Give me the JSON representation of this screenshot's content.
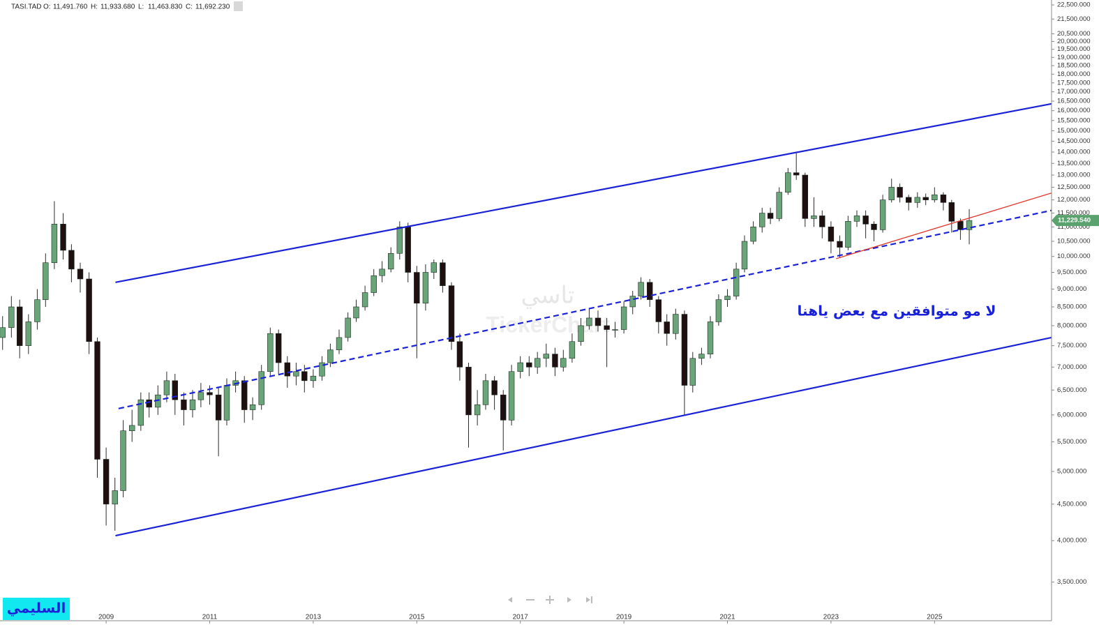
{
  "header": {
    "symbol": "TASI.TAD",
    "fields": [
      {
        "label": "O:",
        "value": "11,491.760"
      },
      {
        "label": "H:",
        "value": "11,933.680"
      },
      {
        "label": "L:",
        "value": "11,463.830"
      },
      {
        "label": "C:",
        "value": "11,692.230"
      }
    ]
  },
  "chart_data": {
    "type": "candlestick",
    "y_scale": "log",
    "grid": false,
    "up_color": "#6aa57a",
    "down_color": "#1e0f10",
    "wick_color": "#2a2a2a",
    "xlim": [
      2006.95,
      2027.26
    ],
    "xticks": [
      2009,
      2011,
      2013,
      2015,
      2017,
      2019,
      2021,
      2023,
      2025
    ],
    "ylim": [
      3090,
      22860
    ],
    "yticks": [
      {
        "value": 3500,
        "label": "3,500.000"
      },
      {
        "value": 4000,
        "label": "4,000.000"
      },
      {
        "value": 4500,
        "label": "4,500.000"
      },
      {
        "value": 5000,
        "label": "5,000.000"
      },
      {
        "value": 5500,
        "label": "5,500.000"
      },
      {
        "value": 6000,
        "label": "6,000.000"
      },
      {
        "value": 6500,
        "label": "6,500.000"
      },
      {
        "value": 7000,
        "label": "7,000.000"
      },
      {
        "value": 7500,
        "label": "7,500.000"
      },
      {
        "value": 8000,
        "label": "8,000.000"
      },
      {
        "value": 8500,
        "label": "8,500.000"
      },
      {
        "value": 9000,
        "label": "9,000.000"
      },
      {
        "value": 9500,
        "label": "9,500.000"
      },
      {
        "value": 10000,
        "label": "10,000.000"
      },
      {
        "value": 10500,
        "label": "10,500.000"
      },
      {
        "value": 11000,
        "label": "11,000.000"
      },
      {
        "value": 11500,
        "label": "11,500.000"
      },
      {
        "value": 12000,
        "label": "12,000.000"
      },
      {
        "value": 12500,
        "label": "12,500.000"
      },
      {
        "value": 13000,
        "label": "13,000.000"
      },
      {
        "value": 13500,
        "label": "13,500.000"
      },
      {
        "value": 14000,
        "label": "14,000.000"
      },
      {
        "value": 14500,
        "label": "14,500.000"
      },
      {
        "value": 15000,
        "label": "15,000.000"
      },
      {
        "value": 15500,
        "label": "15,500.000"
      },
      {
        "value": 16000,
        "label": "16,000.000"
      },
      {
        "value": 16500,
        "label": "16,500.000"
      },
      {
        "value": 17000,
        "label": "17,000.000"
      },
      {
        "value": 17500,
        "label": "17,500.000"
      },
      {
        "value": 18000,
        "label": "18,000.000"
      },
      {
        "value": 18500,
        "label": "18,500.000"
      },
      {
        "value": 19000,
        "label": "19,000.000"
      },
      {
        "value": 19500,
        "label": "19,500.000"
      },
      {
        "value": 20000,
        "label": "20,000.000"
      },
      {
        "value": 20500,
        "label": "20,500.000"
      },
      {
        "value": 21500,
        "label": "21,500.000"
      },
      {
        "value": 22500,
        "label": "22,500.000"
      }
    ],
    "x": [
      2007,
      2007.17,
      2007.33,
      2007.5,
      2007.67,
      2007.83,
      2008,
      2008.17,
      2008.33,
      2008.5,
      2008.67,
      2008.83,
      2009,
      2009.17,
      2009.33,
      2009.5,
      2009.67,
      2009.83,
      2010,
      2010.17,
      2010.33,
      2010.5,
      2010.67,
      2010.83,
      2011,
      2011.17,
      2011.33,
      2011.5,
      2011.67,
      2011.83,
      2012,
      2012.17,
      2012.33,
      2012.5,
      2012.67,
      2012.83,
      2013,
      2013.17,
      2013.33,
      2013.5,
      2013.67,
      2013.83,
      2014,
      2014.17,
      2014.33,
      2014.5,
      2014.67,
      2014.83,
      2015,
      2015.17,
      2015.33,
      2015.5,
      2015.67,
      2015.83,
      2016,
      2016.17,
      2016.33,
      2016.5,
      2016.67,
      2016.83,
      2017,
      2017.17,
      2017.33,
      2017.5,
      2017.67,
      2017.83,
      2018,
      2018.17,
      2018.33,
      2018.5,
      2018.67,
      2018.83,
      2019,
      2019.17,
      2019.33,
      2019.5,
      2019.67,
      2019.83,
      2020,
      2020.17,
      2020.33,
      2020.5,
      2020.67,
      2020.83,
      2021,
      2021.17,
      2021.33,
      2021.5,
      2021.67,
      2021.83,
      2022,
      2022.17,
      2022.33,
      2022.5,
      2022.67,
      2022.83,
      2023,
      2023.17,
      2023.33,
      2023.5,
      2023.67,
      2023.83,
      2024,
      2024.17,
      2024.33,
      2024.5,
      2024.67,
      2024.83,
      2025,
      2025.17,
      2025.33,
      2025.5,
      2025.67
    ],
    "open": [
      7700,
      7950,
      8500,
      7500,
      8100,
      8700,
      9800,
      11100,
      10200,
      9600,
      9300,
      7600,
      5200,
      4500,
      4700,
      5700,
      5800,
      6300,
      6150,
      6400,
      6700,
      6300,
      6100,
      6300,
      6450,
      6400,
      5900,
      6600,
      6700,
      6100,
      6200,
      6900,
      7800,
      7100,
      6800,
      6900,
      6700,
      6800,
      7100,
      7400,
      7700,
      8200,
      8500,
      8900,
      9400,
      9600,
      10100,
      11000,
      9500,
      8600,
      9500,
      9800,
      9100,
      7600,
      7000,
      6000,
      6200,
      6700,
      6400,
      5900,
      6900,
      7100,
      7000,
      7200,
      7300,
      7000,
      7200,
      7600,
      8000,
      8200,
      8000,
      7900,
      7900,
      8500,
      8800,
      9200,
      8700,
      8100,
      7800,
      8300,
      6600,
      7200,
      7300,
      8100,
      8700,
      8800,
      9600,
      10500,
      11000,
      11500,
      11300,
      12300,
      13100,
      13000,
      11300,
      11400,
      11000,
      10500,
      10300,
      11200,
      11400,
      11100,
      10900,
      12000,
      12500,
      12100,
      11900,
      12100,
      12000,
      12200,
      11900,
      11200,
      10900
    ],
    "high": [
      8250,
      8800,
      8700,
      8300,
      9000,
      10100,
      11950,
      11500,
      10400,
      9800,
      9500,
      7700,
      5400,
      4900,
      5900,
      6100,
      6450,
      6450,
      6600,
      6900,
      6850,
      6450,
      6500,
      6650,
      6600,
      6550,
      6750,
      6900,
      6800,
      6350,
      7050,
      7950,
      7900,
      7250,
      7100,
      7050,
      6950,
      7250,
      7550,
      7900,
      8350,
      8700,
      9100,
      9600,
      9850,
      10300,
      11200,
      11150,
      9700,
      9750,
      9900,
      9900,
      9200,
      7800,
      7100,
      6500,
      6850,
      6800,
      6500,
      7050,
      7250,
      7250,
      7350,
      7550,
      7450,
      7400,
      7800,
      8200,
      8450,
      8400,
      8200,
      8100,
      8650,
      8950,
      9350,
      9300,
      8800,
      8300,
      8450,
      8400,
      7350,
      7450,
      8250,
      8850,
      9000,
      9800,
      10700,
      11200,
      11700,
      11700,
      12500,
      13300,
      13950,
      13100,
      12100,
      11600,
      11200,
      10700,
      11400,
      11600,
      11600,
      11200,
      12200,
      12850,
      12650,
      12200,
      12300,
      12250,
      12500,
      12300,
      12000,
      11300,
      11650
    ],
    "low": [
      7400,
      7700,
      7200,
      7300,
      7900,
      8500,
      9600,
      9900,
      9200,
      8900,
      7300,
      4900,
      4200,
      4130,
      4600,
      5500,
      5700,
      5950,
      6000,
      6250,
      6000,
      5800,
      5950,
      6150,
      6200,
      5250,
      5800,
      6450,
      5850,
      5900,
      6100,
      6800,
      6850,
      6550,
      6600,
      6450,
      6550,
      6700,
      7000,
      7300,
      7600,
      8100,
      8400,
      8800,
      9200,
      9500,
      9900,
      9200,
      7200,
      8400,
      9300,
      8900,
      7400,
      6700,
      5400,
      5800,
      6100,
      6100,
      5350,
      5800,
      6750,
      6800,
      6850,
      7000,
      6800,
      6900,
      7100,
      7500,
      7900,
      7850,
      7000,
      7700,
      7800,
      8300,
      8700,
      8500,
      7800,
      7500,
      7650,
      6000,
      6450,
      7050,
      7200,
      8000,
      8500,
      8700,
      9500,
      10400,
      10800,
      11100,
      11200,
      12200,
      12800,
      11000,
      11000,
      10600,
      10100,
      9950,
      10200,
      11000,
      10600,
      10500,
      10800,
      11900,
      11900,
      11600,
      11700,
      11800,
      11900,
      11600,
      10800,
      10550,
      10400
    ],
    "close": [
      7950,
      8500,
      7500,
      8100,
      8700,
      9800,
      11100,
      10200,
      9600,
      9300,
      7600,
      5200,
      4500,
      4700,
      5700,
      5800,
      6300,
      6150,
      6400,
      6700,
      6300,
      6100,
      6300,
      6450,
      6400,
      5900,
      6600,
      6700,
      6100,
      6200,
      6900,
      7800,
      7100,
      6800,
      6900,
      6700,
      6800,
      7100,
      7400,
      7700,
      8200,
      8500,
      8900,
      9400,
      9600,
      10100,
      11000,
      9500,
      8600,
      9500,
      9800,
      9100,
      7600,
      7000,
      6000,
      6200,
      6700,
      6400,
      5900,
      6900,
      7100,
      7000,
      7200,
      7300,
      7000,
      7200,
      7600,
      8000,
      8200,
      8000,
      7900,
      7900,
      8500,
      8800,
      9200,
      8700,
      8100,
      7800,
      8300,
      6600,
      7200,
      7300,
      8100,
      8700,
      8800,
      9600,
      10500,
      11000,
      11500,
      11300,
      12300,
      13100,
      13000,
      11300,
      11400,
      11000,
      10500,
      10300,
      11200,
      11400,
      11100,
      10900,
      12000,
      12500,
      12100,
      11900,
      12100,
      12000,
      12200,
      11900,
      11200,
      10900,
      11229.54
    ],
    "last_price": {
      "value": 11229.54,
      "label": "11,229.540",
      "color": "#5aa36e"
    },
    "trend_lines": [
      {
        "color": "#1a22d8",
        "dash": false,
        "x": [
          2009.18,
          2027.26
        ],
        "y": [
          9200,
          16360
        ]
      },
      {
        "color": "#1a22d8",
        "dash": false,
        "x": [
          2009.18,
          2027.26
        ],
        "y": [
          4065,
          7700
        ]
      },
      {
        "color": "#1a22d8",
        "dash": true,
        "x": [
          2009.24,
          2027.26
        ],
        "y": [
          6124,
          11600
        ]
      },
      {
        "color": "#e0352b",
        "dash": false,
        "x": [
          2023.1,
          2027.26
        ],
        "y": [
          9930,
          12270
        ]
      }
    ],
    "annotation": "لا مو متوافقين مع بعض ياهنا",
    "watermark": "تاسي",
    "watermark_brand": "TickerChart",
    "signature": "السليمي"
  }
}
